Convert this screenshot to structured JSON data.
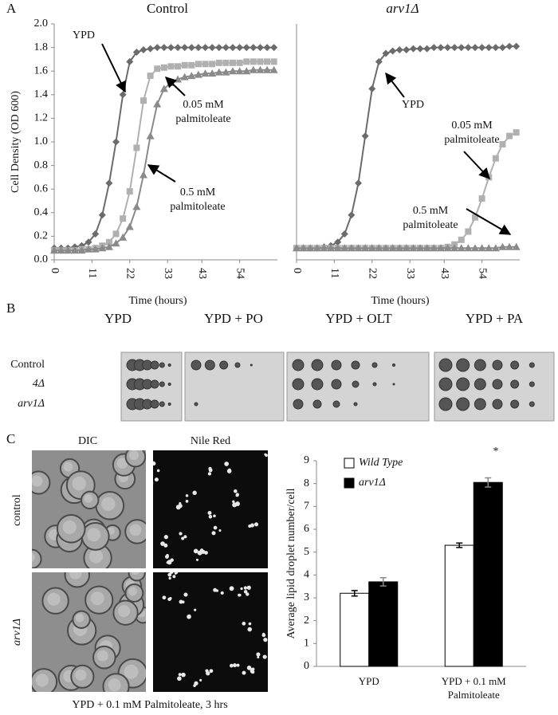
{
  "panel_labels": [
    "A",
    "B",
    "C"
  ],
  "chart_data": [
    {
      "type": "line",
      "title": "Control",
      "x": [
        0,
        2,
        4,
        6,
        8,
        10,
        12,
        14,
        16,
        18,
        20,
        22,
        24,
        26,
        28,
        30,
        32,
        34,
        36,
        38,
        40,
        42,
        44,
        46,
        48,
        50,
        52,
        54,
        56,
        58,
        60,
        62,
        64
      ],
      "xlim": [
        0,
        65
      ],
      "xticks": [
        0,
        11,
        22,
        33,
        43,
        54
      ],
      "ylim": [
        0,
        2
      ],
      "yticks": [
        {
          "value": 0,
          "label": "0.0"
        },
        0.2,
        0.4,
        0.6,
        0.8,
        {
          "value": 1,
          "label": "1.0"
        },
        1.2,
        1.4,
        1.6,
        1.8,
        {
          "value": 2,
          "label": "2.0"
        }
      ],
      "xlabel": "Time (hours)",
      "ylabel": "Cell Density (OD 600)",
      "series": [
        {
          "color": "#6b6b6b",
          "marker": "diamond",
          "values": [
            0.1,
            0.1,
            0.1,
            0.11,
            0.12,
            0.15,
            0.22,
            0.38,
            0.65,
            1.0,
            1.4,
            1.68,
            1.76,
            1.78,
            1.79,
            1.8,
            1.8,
            1.8,
            1.8,
            1.8,
            1.8,
            1.8,
            1.8,
            1.8,
            1.8,
            1.8,
            1.8,
            1.8,
            1.8,
            1.8,
            1.8,
            1.8,
            1.8
          ]
        },
        {
          "color": "#b0b0b0",
          "marker": "square",
          "values": [
            0.08,
            0.08,
            0.08,
            0.08,
            0.09,
            0.09,
            0.1,
            0.12,
            0.15,
            0.22,
            0.35,
            0.58,
            0.95,
            1.35,
            1.56,
            1.62,
            1.63,
            1.64,
            1.64,
            1.65,
            1.65,
            1.66,
            1.66,
            1.66,
            1.67,
            1.67,
            1.67,
            1.67,
            1.68,
            1.68,
            1.68,
            1.68,
            1.68
          ]
        },
        {
          "color": "#8a8a8a",
          "marker": "triangle",
          "values": [
            0.08,
            0.08,
            0.08,
            0.08,
            0.08,
            0.09,
            0.09,
            0.1,
            0.11,
            0.14,
            0.19,
            0.28,
            0.45,
            0.72,
            1.05,
            1.32,
            1.45,
            1.5,
            1.53,
            1.55,
            1.56,
            1.57,
            1.58,
            1.58,
            1.59,
            1.59,
            1.6,
            1.6,
            1.6,
            1.61,
            1.61,
            1.61,
            1.61
          ]
        }
      ],
      "annotations": [
        [
          "YPD"
        ],
        [
          "0.05 mM",
          "palmitoleate"
        ],
        [
          "0.5 mM",
          "palmitoleate"
        ]
      ]
    },
    {
      "type": "line",
      "title": "arv1Δ",
      "x": [
        0,
        2,
        4,
        6,
        8,
        10,
        12,
        14,
        16,
        18,
        20,
        22,
        24,
        26,
        28,
        30,
        32,
        34,
        36,
        38,
        40,
        42,
        44,
        46,
        48,
        50,
        52,
        54,
        56,
        58,
        60,
        62,
        64
      ],
      "xlim": [
        0,
        65
      ],
      "xticks": [
        0,
        11,
        22,
        33,
        43,
        54
      ],
      "ylim": [
        0,
        2
      ],
      "xlabel": "Time (hours)",
      "series": [
        {
          "color": "#6b6b6b",
          "marker": "diamond",
          "values": [
            0.1,
            0.1,
            0.1,
            0.1,
            0.11,
            0.12,
            0.15,
            0.22,
            0.38,
            0.65,
            1.05,
            1.45,
            1.68,
            1.75,
            1.77,
            1.78,
            1.78,
            1.79,
            1.79,
            1.79,
            1.8,
            1.8,
            1.8,
            1.8,
            1.8,
            1.8,
            1.8,
            1.8,
            1.8,
            1.8,
            1.8,
            1.81,
            1.81
          ]
        },
        {
          "color": "#b0b0b0",
          "marker": "square",
          "values": [
            0.1,
            0.1,
            0.1,
            0.1,
            0.1,
            0.1,
            0.1,
            0.1,
            0.1,
            0.1,
            0.1,
            0.1,
            0.1,
            0.1,
            0.1,
            0.1,
            0.1,
            0.1,
            0.1,
            0.1,
            0.1,
            0.1,
            0.11,
            0.13,
            0.17,
            0.24,
            0.36,
            0.52,
            0.7,
            0.86,
            0.98,
            1.05,
            1.08
          ]
        },
        {
          "color": "#8a8a8a",
          "marker": "triangle",
          "values": [
            0.1,
            0.1,
            0.1,
            0.1,
            0.1,
            0.1,
            0.1,
            0.1,
            0.1,
            0.1,
            0.1,
            0.1,
            0.1,
            0.1,
            0.1,
            0.1,
            0.1,
            0.1,
            0.1,
            0.1,
            0.1,
            0.1,
            0.1,
            0.1,
            0.1,
            0.1,
            0.1,
            0.1,
            0.1,
            0.1,
            0.11,
            0.11,
            0.11
          ]
        }
      ],
      "annotations": [
        [
          "YPD"
        ],
        [
          "0.05 mM",
          "palmitoleate"
        ],
        [
          "0.5 mM",
          "palmitoleate"
        ]
      ]
    },
    {
      "type": "bar",
      "categories": [
        "YPD",
        "YPD + 0.1 mM Palmitoleate"
      ],
      "ylabel": "Average lipid droplet number/cell",
      "ylim": [
        0,
        9
      ],
      "yticks": [
        0,
        1,
        2,
        3,
        4,
        5,
        6,
        7,
        8,
        9
      ],
      "series": [
        {
          "name": "Wild Type",
          "color": "#ffffff",
          "values": [
            3.2,
            5.3
          ],
          "errors": [
            0.12,
            0.1
          ]
        },
        {
          "name": "arv1Δ",
          "color": "#000000",
          "values": [
            3.7,
            8.05
          ],
          "errors": [
            0.18,
            0.2
          ]
        }
      ],
      "annotations": [
        "*"
      ]
    }
  ],
  "panel_b": {
    "columns": [
      "YPD",
      "YPD + PO",
      "YPD + OLT",
      "YPD + PA"
    ],
    "rows": [
      "Control",
      "4Δ",
      "arv1Δ"
    ]
  },
  "panel_c": {
    "columns": [
      "DIC",
      "Nile Red"
    ],
    "rows": [
      "control",
      "arv1Δ"
    ],
    "caption": "YPD + 0.1 mM Palmitoleate, 3 hrs"
  }
}
